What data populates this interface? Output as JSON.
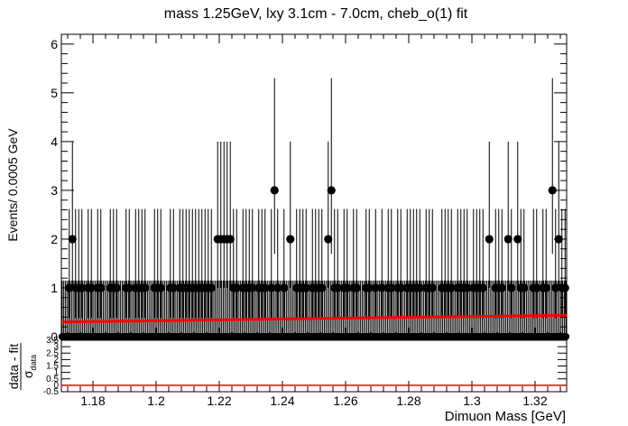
{
  "chart_data": [
    {
      "type": "scatter",
      "title": "mass 1.25GeV, lxy 3.1cm - 7.0cm, cheb_o(1) fit",
      "ylabel": "Events/ 0.0005 GeV",
      "xlim": [
        1.17,
        1.33
      ],
      "ylim": [
        0,
        6.2
      ],
      "y_ticks": [
        "0",
        "1",
        "2",
        "3",
        "4",
        "5",
        "6"
      ],
      "grid": false,
      "series": [
        {
          "points": [
            [
              1.1725,
              1
            ],
            [
              1.1735,
              2
            ],
            [
              1.1745,
              1
            ],
            [
              1.1755,
              1
            ],
            [
              1.1765,
              1
            ],
            [
              1.1785,
              1
            ],
            [
              1.1795,
              1
            ],
            [
              1.1815,
              1
            ],
            [
              1.1825,
              1
            ],
            [
              1.1855,
              1
            ],
            [
              1.1865,
              1
            ],
            [
              1.1875,
              1
            ],
            [
              1.1905,
              1
            ],
            [
              1.1915,
              1
            ],
            [
              1.1935,
              1
            ],
            [
              1.1945,
              1
            ],
            [
              1.1955,
              1
            ],
            [
              1.1965,
              1
            ],
            [
              1.1995,
              1
            ],
            [
              1.2005,
              1
            ],
            [
              1.2015,
              1
            ],
            [
              1.2045,
              1
            ],
            [
              1.2055,
              1
            ],
            [
              1.2075,
              1
            ],
            [
              1.2085,
              1
            ],
            [
              1.2095,
              1
            ],
            [
              1.2105,
              1
            ],
            [
              1.2115,
              1
            ],
            [
              1.2125,
              1
            ],
            [
              1.2135,
              1
            ],
            [
              1.2145,
              1
            ],
            [
              1.2155,
              1
            ],
            [
              1.2165,
              1
            ],
            [
              1.2175,
              1
            ],
            [
              1.2195,
              2
            ],
            [
              1.2205,
              2
            ],
            [
              1.2215,
              2
            ],
            [
              1.2225,
              2
            ],
            [
              1.2235,
              2
            ],
            [
              1.2245,
              1
            ],
            [
              1.2255,
              1
            ],
            [
              1.2275,
              1
            ],
            [
              1.2285,
              1
            ],
            [
              1.2295,
              1
            ],
            [
              1.2305,
              1
            ],
            [
              1.2325,
              1
            ],
            [
              1.2335,
              1
            ],
            [
              1.2345,
              1
            ],
            [
              1.2365,
              1
            ],
            [
              1.2375,
              3
            ],
            [
              1.2385,
              1
            ],
            [
              1.2405,
              1
            ],
            [
              1.2425,
              2
            ],
            [
              1.2445,
              1
            ],
            [
              1.2455,
              1
            ],
            [
              1.2465,
              1
            ],
            [
              1.2475,
              1
            ],
            [
              1.2495,
              1
            ],
            [
              1.2505,
              1
            ],
            [
              1.2515,
              1
            ],
            [
              1.2525,
              1
            ],
            [
              1.2545,
              2
            ],
            [
              1.2555,
              3
            ],
            [
              1.2565,
              1
            ],
            [
              1.2575,
              1
            ],
            [
              1.2595,
              1
            ],
            [
              1.2605,
              1
            ],
            [
              1.2625,
              1
            ],
            [
              1.2635,
              1
            ],
            [
              1.2665,
              1
            ],
            [
              1.2675,
              1
            ],
            [
              1.2695,
              1
            ],
            [
              1.2715,
              1
            ],
            [
              1.2735,
              1
            ],
            [
              1.2745,
              1
            ],
            [
              1.2765,
              1
            ],
            [
              1.2775,
              1
            ],
            [
              1.2795,
              1
            ],
            [
              1.2805,
              1
            ],
            [
              1.2815,
              1
            ],
            [
              1.2825,
              1
            ],
            [
              1.2835,
              1
            ],
            [
              1.2855,
              1
            ],
            [
              1.2865,
              1
            ],
            [
              1.2875,
              1
            ],
            [
              1.2905,
              1
            ],
            [
              1.2915,
              1
            ],
            [
              1.2925,
              1
            ],
            [
              1.2935,
              1
            ],
            [
              1.2955,
              1
            ],
            [
              1.2965,
              1
            ],
            [
              1.2975,
              1
            ],
            [
              1.2985,
              1
            ],
            [
              1.3005,
              1
            ],
            [
              1.3015,
              1
            ],
            [
              1.3025,
              1
            ],
            [
              1.3035,
              1
            ],
            [
              1.3055,
              2
            ],
            [
              1.3075,
              1
            ],
            [
              1.3085,
              1
            ],
            [
              1.3095,
              1
            ],
            [
              1.3115,
              2
            ],
            [
              1.3125,
              1
            ],
            [
              1.3145,
              2
            ],
            [
              1.3155,
              1
            ],
            [
              1.3165,
              1
            ],
            [
              1.3195,
              1
            ],
            [
              1.3205,
              1
            ],
            [
              1.3225,
              1
            ],
            [
              1.3235,
              1
            ],
            [
              1.3255,
              3
            ],
            [
              1.3265,
              1
            ],
            [
              1.3275,
              2
            ],
            [
              1.3285,
              1
            ],
            [
              1.3295,
              1
            ]
          ]
        }
      ],
      "fit_line": {
        "x": [
          1.17,
          1.33
        ],
        "y": [
          0.3,
          0.44
        ]
      }
    },
    {
      "type": "bar",
      "ylabel_num": "data - fit",
      "ylabel_den": "σ",
      "ylabel_den_sub": "data",
      "xlabel": "Dimuon Mass [GeV]",
      "xlim": [
        1.17,
        1.33
      ],
      "ylim": [
        -0.5,
        3.5
      ],
      "x_ticks": [
        "1.18",
        "1.2",
        "1.22",
        "1.24",
        "1.26",
        "1.28",
        "1.3",
        "1.32"
      ],
      "y_ticks": [
        "-0.5",
        "0",
        "0.5",
        "1",
        "1.5",
        "2",
        "2.5",
        "3",
        "3.5"
      ]
    }
  ],
  "colors": {
    "data": "#000000",
    "fit": "#ff0000",
    "pull": "#ff0000"
  }
}
